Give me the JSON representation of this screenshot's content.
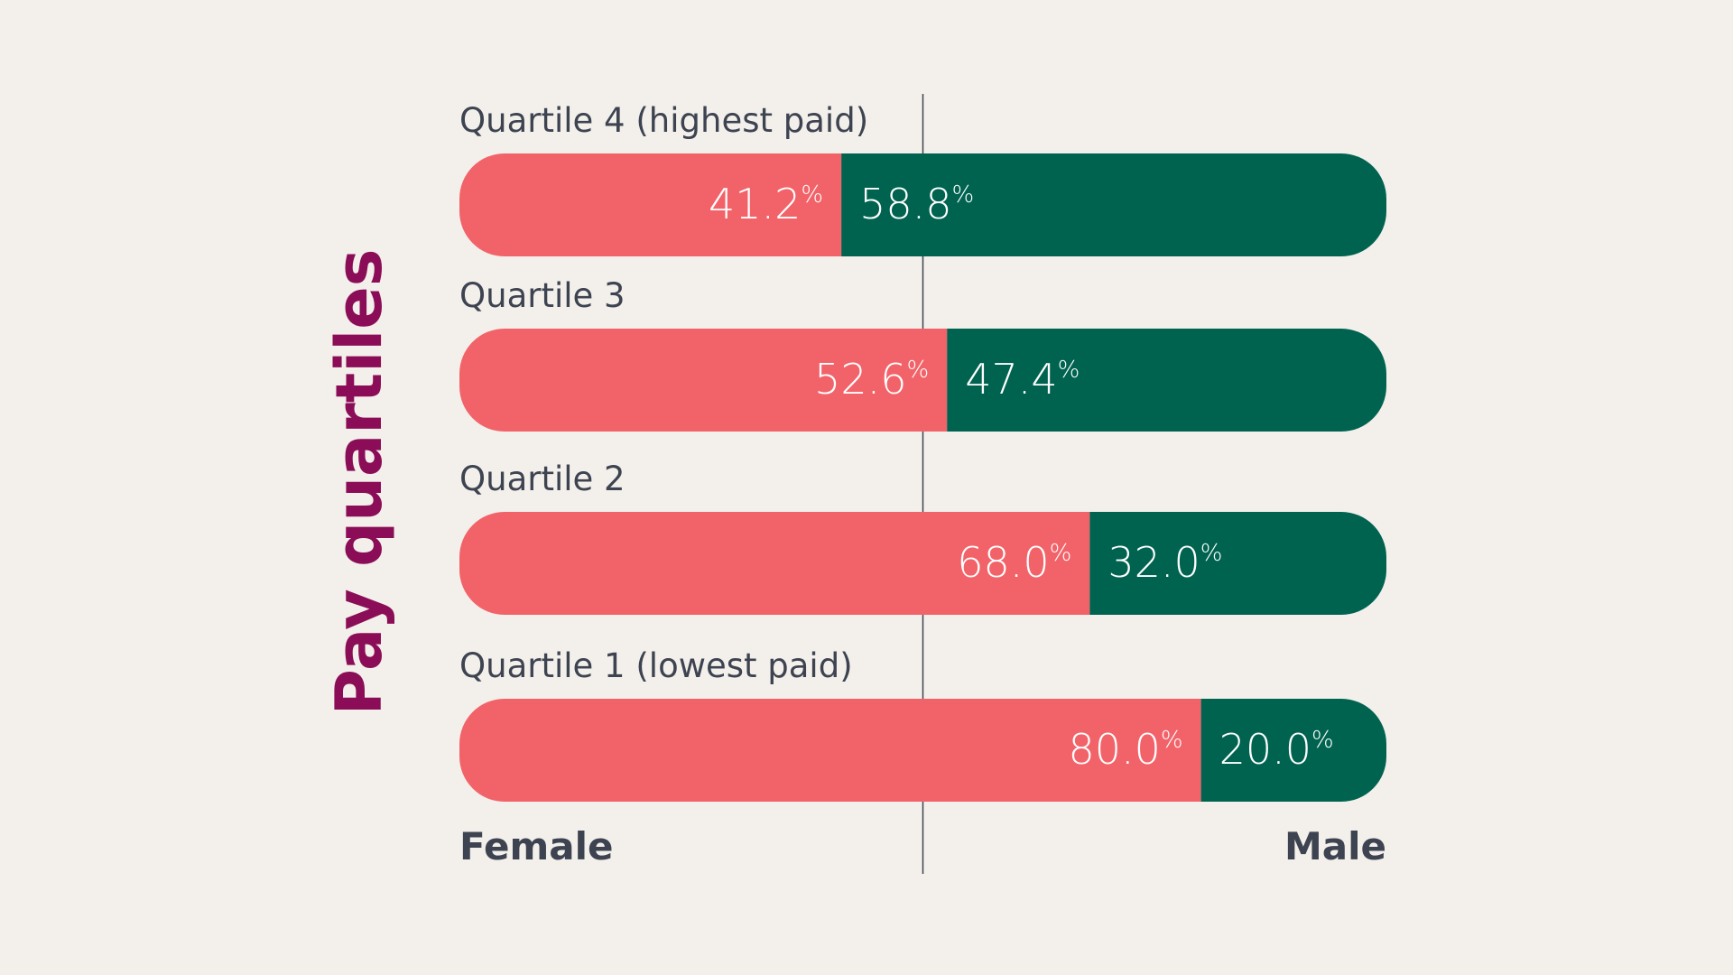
{
  "chart_data": {
    "type": "bar",
    "stacked": true,
    "orientation": "horizontal",
    "title": "Pay quartiles",
    "categories": [
      "Quartile 4 (highest paid)",
      "Quartile 3",
      "Quartile 2",
      "Quartile 1 (lowest paid)"
    ],
    "series": [
      {
        "name": "Female",
        "values": [
          41.2,
          52.6,
          68.0,
          80.0
        ],
        "labels": [
          "41.2",
          "52.6",
          "68.0",
          "80.0"
        ],
        "color": "#F26369"
      },
      {
        "name": "Male",
        "values": [
          58.8,
          47.4,
          32.0,
          20.0
        ],
        "labels": [
          "58.8",
          "47.4",
          "32.0",
          "20.0"
        ],
        "color": "#006350"
      }
    ],
    "unit": "%",
    "xlim": [
      0,
      100
    ],
    "reference_line": 50,
    "colors": {
      "background": "#F3F0EB",
      "text": "#3D4350",
      "title": "#8B0D57"
    }
  }
}
